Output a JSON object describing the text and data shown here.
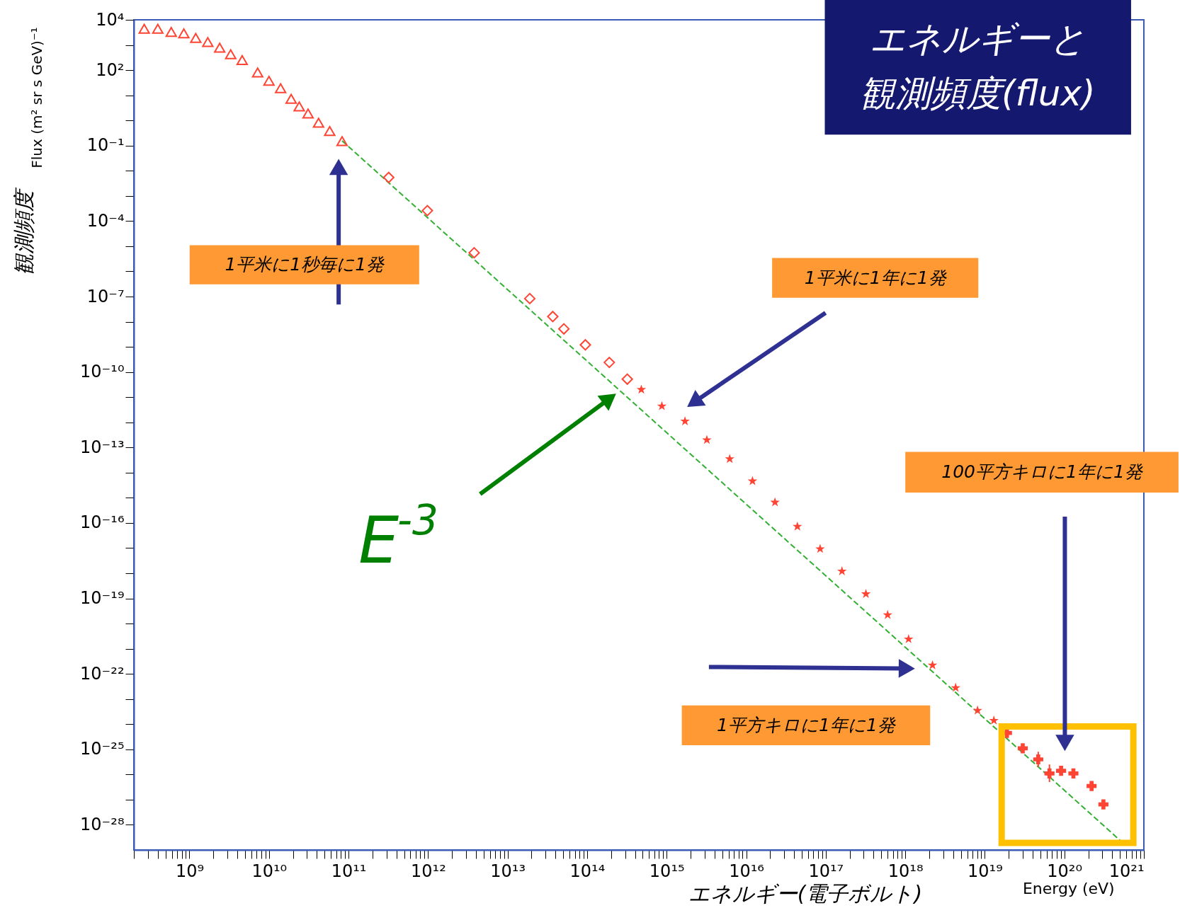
{
  "chart_data": {
    "type": "scatter",
    "title": "エネルギーと観測頻度(flux)",
    "xlabel": "エネルギー(電子ボルト)",
    "ylabel": "観測頻度",
    "annotations": [
      "1平米に1秒毎に1発",
      "1平米に1年に1発",
      "1平方キロに1年に1発",
      "100平方キロに1年に1発",
      "E$^{-3}$",
      "Energy (eV)",
      "Flux (m² sr s GeV)⁻¹"
    ],
    "log": "xy",
    "grid": false,
    "xlim": [
      200000000.0,
      1e+21
    ],
    "ylim": [
      1e-29,
      10000.0
    ],
    "xticks": [
      {
        "value": 200000000.0,
        "label": null
      },
      {
        "value": 300000000.0,
        "label": null
      },
      {
        "value": 400000000.0,
        "label": null
      },
      {
        "value": 500000000.0,
        "label": null
      },
      {
        "value": 600000000.0,
        "label": null
      },
      {
        "value": 700000000.0,
        "label": null
      },
      {
        "value": 800000000.0,
        "label": null
      },
      {
        "value": 900000000.0,
        "label": null
      },
      {
        "value": 1000000000.0,
        "label": "10⁹"
      },
      {
        "value": 2000000000.0,
        "label": null
      },
      {
        "value": 3000000000.0,
        "label": null
      },
      {
        "value": 4000000000.0,
        "label": null
      },
      {
        "value": 5000000000.0,
        "label": null
      },
      {
        "value": 6000000000.0,
        "label": null
      },
      {
        "value": 7000000000.0,
        "label": null
      },
      {
        "value": 8000000000.0,
        "label": null
      },
      {
        "value": 9000000000.0,
        "label": null
      },
      {
        "value": 10000000000.0,
        "label": "10¹⁰"
      },
      {
        "value": 20000000000.0,
        "label": null
      },
      {
        "value": 30000000000.0,
        "label": null
      },
      {
        "value": 40000000000.0,
        "label": null
      },
      {
        "value": 50000000000.0,
        "label": null
      },
      {
        "value": 60000000000.0,
        "label": null
      },
      {
        "value": 70000000000.0,
        "label": null
      },
      {
        "value": 80000000000.0,
        "label": null
      },
      {
        "value": 90000000000.0,
        "label": null
      },
      {
        "value": 100000000000.0,
        "label": "10¹¹"
      },
      {
        "value": 200000000000.0,
        "label": null
      },
      {
        "value": 300000000000.0,
        "label": null
      },
      {
        "value": 400000000000.0,
        "label": null
      },
      {
        "value": 500000000000.0,
        "label": null
      },
      {
        "value": 600000000000.0,
        "label": null
      },
      {
        "value": 700000000000.0,
        "label": null
      },
      {
        "value": 800000000000.0,
        "label": null
      },
      {
        "value": 900000000000.0,
        "label": null
      },
      {
        "value": 1000000000000.0,
        "label": "10¹²"
      },
      {
        "value": 2000000000000.0,
        "label": null
      },
      {
        "value": 3000000000000.0,
        "label": null
      },
      {
        "value": 4000000000000.0,
        "label": null
      },
      {
        "value": 5000000000000.0,
        "label": null
      },
      {
        "value": 6000000000000.0,
        "label": null
      },
      {
        "value": 7000000000000.0,
        "label": null
      },
      {
        "value": 8000000000000.0,
        "label": null
      },
      {
        "value": 9000000000000.0,
        "label": null
      },
      {
        "value": 10000000000000.0,
        "label": "10¹³"
      },
      {
        "value": 20000000000000.0,
        "label": null
      },
      {
        "value": 30000000000000.0,
        "label": null
      },
      {
        "value": 40000000000000.0,
        "label": null
      },
      {
        "value": 50000000000000.0,
        "label": null
      },
      {
        "value": 60000000000000.0,
        "label": null
      },
      {
        "value": 70000000000000.0,
        "label": null
      },
      {
        "value": 80000000000000.0,
        "label": null
      },
      {
        "value": 90000000000000.0,
        "label": null
      },
      {
        "value": 100000000000000.0,
        "label": "10¹⁴"
      },
      {
        "value": 200000000000000.0,
        "label": null
      },
      {
        "value": 300000000000000.0,
        "label": null
      },
      {
        "value": 400000000000000.0,
        "label": null
      },
      {
        "value": 500000000000000.0,
        "label": null
      },
      {
        "value": 600000000000000.0,
        "label": null
      },
      {
        "value": 700000000000000.0,
        "label": null
      },
      {
        "value": 800000000000000.0,
        "label": null
      },
      {
        "value": 900000000000000.0,
        "label": null
      },
      {
        "value": 1000000000000000.0,
        "label": "10¹⁵"
      },
      {
        "value": 2000000000000000.0,
        "label": null
      },
      {
        "value": 3000000000000000.0,
        "label": null
      },
      {
        "value": 4000000000000000.0,
        "label": null
      },
      {
        "value": 5000000000000000.0,
        "label": null
      },
      {
        "value": 6000000000000000.0,
        "label": null
      },
      {
        "value": 7000000000000000.0,
        "label": null
      },
      {
        "value": 8000000000000000.0,
        "label": null
      },
      {
        "value": 9000000000000000.0,
        "label": null
      },
      {
        "value": 1e+16,
        "label": "10¹⁶"
      },
      {
        "value": 2e+16,
        "label": null
      },
      {
        "value": 3e+16,
        "label": null
      },
      {
        "value": 4e+16,
        "label": null
      },
      {
        "value": 5e+16,
        "label": null
      },
      {
        "value": 6e+16,
        "label": null
      },
      {
        "value": 7e+16,
        "label": null
      },
      {
        "value": 8e+16,
        "label": null
      },
      {
        "value": 9e+16,
        "label": null
      },
      {
        "value": 1e+17,
        "label": "10¹⁷"
      },
      {
        "value": 2e+17,
        "label": null
      },
      {
        "value": 3e+17,
        "label": null
      },
      {
        "value": 4e+17,
        "label": null
      },
      {
        "value": 5e+17,
        "label": null
      },
      {
        "value": 6e+17,
        "label": null
      },
      {
        "value": 7e+17,
        "label": null
      },
      {
        "value": 8e+17,
        "label": null
      },
      {
        "value": 9e+17,
        "label": null
      },
      {
        "value": 1e+18,
        "label": "10¹⁸"
      },
      {
        "value": 2e+18,
        "label": null
      },
      {
        "value": 3e+18,
        "label": null
      },
      {
        "value": 4e+18,
        "label": null
      },
      {
        "value": 5e+18,
        "label": null
      },
      {
        "value": 6e+18,
        "label": null
      },
      {
        "value": 7e+18,
        "label": null
      },
      {
        "value": 8e+18,
        "label": null
      },
      {
        "value": 9e+18,
        "label": null
      },
      {
        "value": 1e+19,
        "label": "10¹⁹"
      },
      {
        "value": 2e+19,
        "label": null
      },
      {
        "value": 3e+19,
        "label": null
      },
      {
        "value": 4e+19,
        "label": null
      },
      {
        "value": 5e+19,
        "label": null
      },
      {
        "value": 6e+19,
        "label": null
      },
      {
        "value": 7e+19,
        "label": null
      },
      {
        "value": 8e+19,
        "label": null
      },
      {
        "value": 9e+19,
        "label": null
      },
      {
        "value": 1e+20,
        "label": "10²⁰"
      },
      {
        "value": 2e+20,
        "label": null
      },
      {
        "value": 3e+20,
        "label": null
      },
      {
        "value": 4e+20,
        "label": null
      },
      {
        "value": 5e+20,
        "label": null
      },
      {
        "value": 6e+20,
        "label": null
      },
      {
        "value": 7e+20,
        "label": null
      },
      {
        "value": 8e+20,
        "label": null
      },
      {
        "value": 9e+20,
        "label": null
      },
      {
        "value": 1e+21,
        "label": "10²¹"
      }
    ],
    "yticks": [
      {
        "value": 10000.0,
        "label": "10⁴"
      },
      {
        "value": 1000.0,
        "label": null
      },
      {
        "value": 100.0,
        "label": "10²"
      },
      {
        "value": 10.0,
        "label": null
      },
      {
        "value": 1,
        "label": null
      },
      {
        "value": 0.1,
        "label": "10⁻¹"
      },
      {
        "value": 0.01,
        "label": null
      },
      {
        "value": 0.001,
        "label": null
      },
      {
        "value": 0.0001,
        "label": "10⁻⁴"
      },
      {
        "value": 1e-05,
        "label": null
      },
      {
        "value": 1e-06,
        "label": null
      },
      {
        "value": 1e-07,
        "label": "10⁻⁷"
      },
      {
        "value": 1e-08,
        "label": null
      },
      {
        "value": 1e-09,
        "label": null
      },
      {
        "value": 1e-10,
        "label": "10⁻¹⁰"
      },
      {
        "value": 1e-11,
        "label": null
      },
      {
        "value": 1e-12,
        "label": null
      },
      {
        "value": 1e-13,
        "label": "10⁻¹³"
      },
      {
        "value": 1e-14,
        "label": null
      },
      {
        "value": 1e-15,
        "label": null
      },
      {
        "value": 1e-16,
        "label": "10⁻¹⁶"
      },
      {
        "value": 1e-17,
        "label": null
      },
      {
        "value": 1e-18,
        "label": null
      },
      {
        "value": 1e-19,
        "label": "10⁻¹⁹"
      },
      {
        "value": 1e-20,
        "label": null
      },
      {
        "value": 1e-21,
        "label": null
      },
      {
        "value": 1e-22,
        "label": "10⁻²²"
      },
      {
        "value": 1e-23,
        "label": null
      },
      {
        "value": 1e-24,
        "label": null
      },
      {
        "value": 1e-25,
        "label": "10⁻²⁵"
      },
      {
        "value": 1e-26,
        "label": null
      },
      {
        "value": 1e-27,
        "label": null
      },
      {
        "value": 1e-28,
        "label": "10⁻²⁸"
      }
    ],
    "series": [
      {
        "type": "line",
        "color": "#33b033",
        "line_style": "dashed",
        "x": [
          83000000000.0,
          5.1e+20
        ],
        "values": [
          0.155,
          2.3e-29
        ]
      },
      {
        "type": "scatter",
        "marker": "triangle",
        "color": "#ff4433",
        "x": [
          270000000.0,
          400000000.0,
          590000000.0,
          850000000.0,
          1200000000.0,
          1700000000.0,
          2400000000.0,
          3300000000.0,
          4600000000.0,
          7200000000.0,
          10000000000.0,
          14000000000.0,
          19000000000.0,
          24000000000.0,
          31000000000.0,
          42000000000.0,
          58000000000.0,
          83000000000.0
        ],
        "values": [
          4400.0,
          4400.0,
          3300.0,
          2900.0,
          1900.0,
          1300.0,
          780.0,
          430.0,
          250.0,
          81,
          38,
          19,
          7.2,
          3.6,
          1.9,
          0.81,
          0.38,
          0.15
        ]
      },
      {
        "type": "scatter",
        "marker": "diamond",
        "color": "#ff4433",
        "x": [
          320000000000.0,
          980000000000.0,
          3800000000000.0,
          19000000000000.0,
          37000000000000.0,
          51000000000000.0,
          95000000000000.0,
          190000000000000.0,
          320000000000000.0
        ],
        "values": [
          0.0054,
          0.00026,
          5.5e-06,
          8.3e-08,
          1.6e-08,
          5.2e-09,
          1.2e-09,
          2.4e-10,
          5.2e-11
        ]
      },
      {
        "type": "scatter",
        "marker": "star",
        "color": "#ff4433",
        "x": [
          480000000000000.0,
          870000000000000.0,
          1700000000000000.0,
          3200000000000000.0,
          6200000000000000.0,
          1.2e+16,
          2.3e+16,
          4.4e+16,
          8.5e+16,
          1.6e+17,
          3.2e+17,
          6e+17,
          1.1e+18,
          2.2e+18,
          4.3e+18,
          8.1e+18,
          1.3e+19
        ],
        "values": [
          2e-11,
          4.4e-12,
          1.1e-12,
          2e-13,
          3.5e-14,
          4.6e-15,
          6.6e-16,
          7.2e-17,
          9.3e-18,
          1.2e-18,
          1.5e-19,
          2.2e-20,
          2.4e-21,
          2.2e-22,
          2.8e-23,
          3.5e-24,
          1.4e-24
        ]
      },
      {
        "type": "scatter",
        "marker": "cross",
        "color": "#ff4433",
        "x": [
          1.9e+19,
          3e+19,
          4.7e+19,
          6.5e+19,
          9.1e+19,
          1.3e+20,
          2.2e+20,
          3.1e+20
        ],
        "values": [
          4.5e-25,
          1.1e-25,
          4e-26,
          1.1e-26,
          1.4e-26,
          1.1e-26,
          3.5e-27,
          6.5e-28
        ],
        "errors": [
          null,
          null,
          [
            2e-26,
            8e-26
          ],
          [
            5e-27,
            2.5e-26
          ],
          null,
          null,
          null,
          null
        ]
      }
    ]
  }
}
